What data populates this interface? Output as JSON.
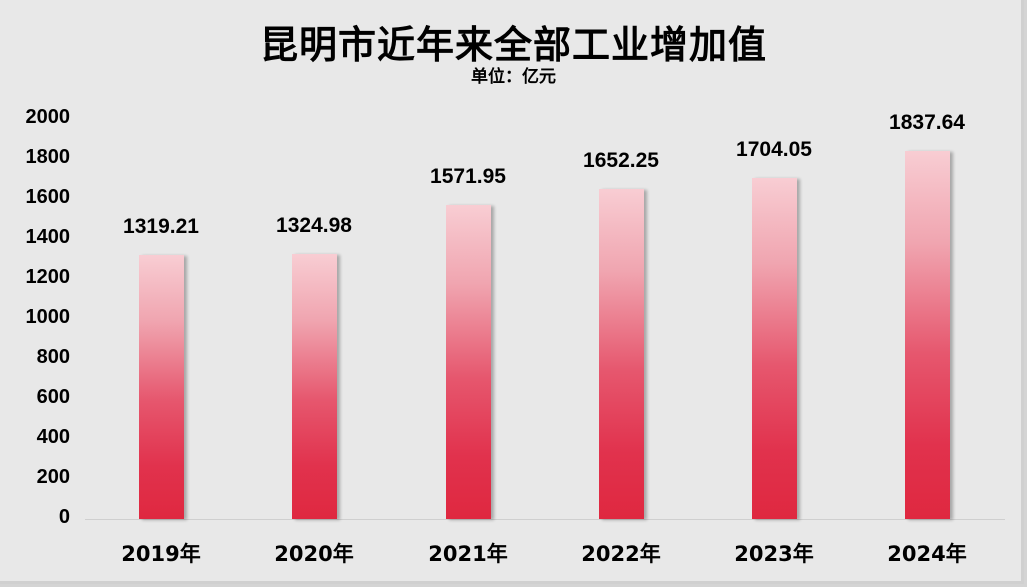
{
  "chart_data": {
    "type": "bar",
    "title": "昆明市近年来全部工业增加值",
    "subtitle": "单位：亿元",
    "xlabel": "",
    "ylabel": "",
    "categories": [
      "2019年",
      "2020年",
      "2021年",
      "2022年",
      "2023年",
      "2024年"
    ],
    "values": [
      1319.21,
      1324.98,
      1571.95,
      1652.25,
      1704.05,
      1837.64
    ],
    "value_labels": [
      "1319.21",
      "1324.98",
      "1571.95",
      "1652.25",
      "1704.05",
      "1837.64"
    ],
    "ylim": [
      0,
      2000
    ],
    "yticks": [
      "0",
      "200",
      "400",
      "600",
      "800",
      "1000",
      "1200",
      "1400",
      "1600",
      "1800",
      "2000"
    ],
    "grid": false,
    "legend": "none",
    "colors": {
      "bar_top": "#f8cdd3",
      "bar_bottom": "#df2840",
      "background": "#e8e8e8"
    }
  }
}
